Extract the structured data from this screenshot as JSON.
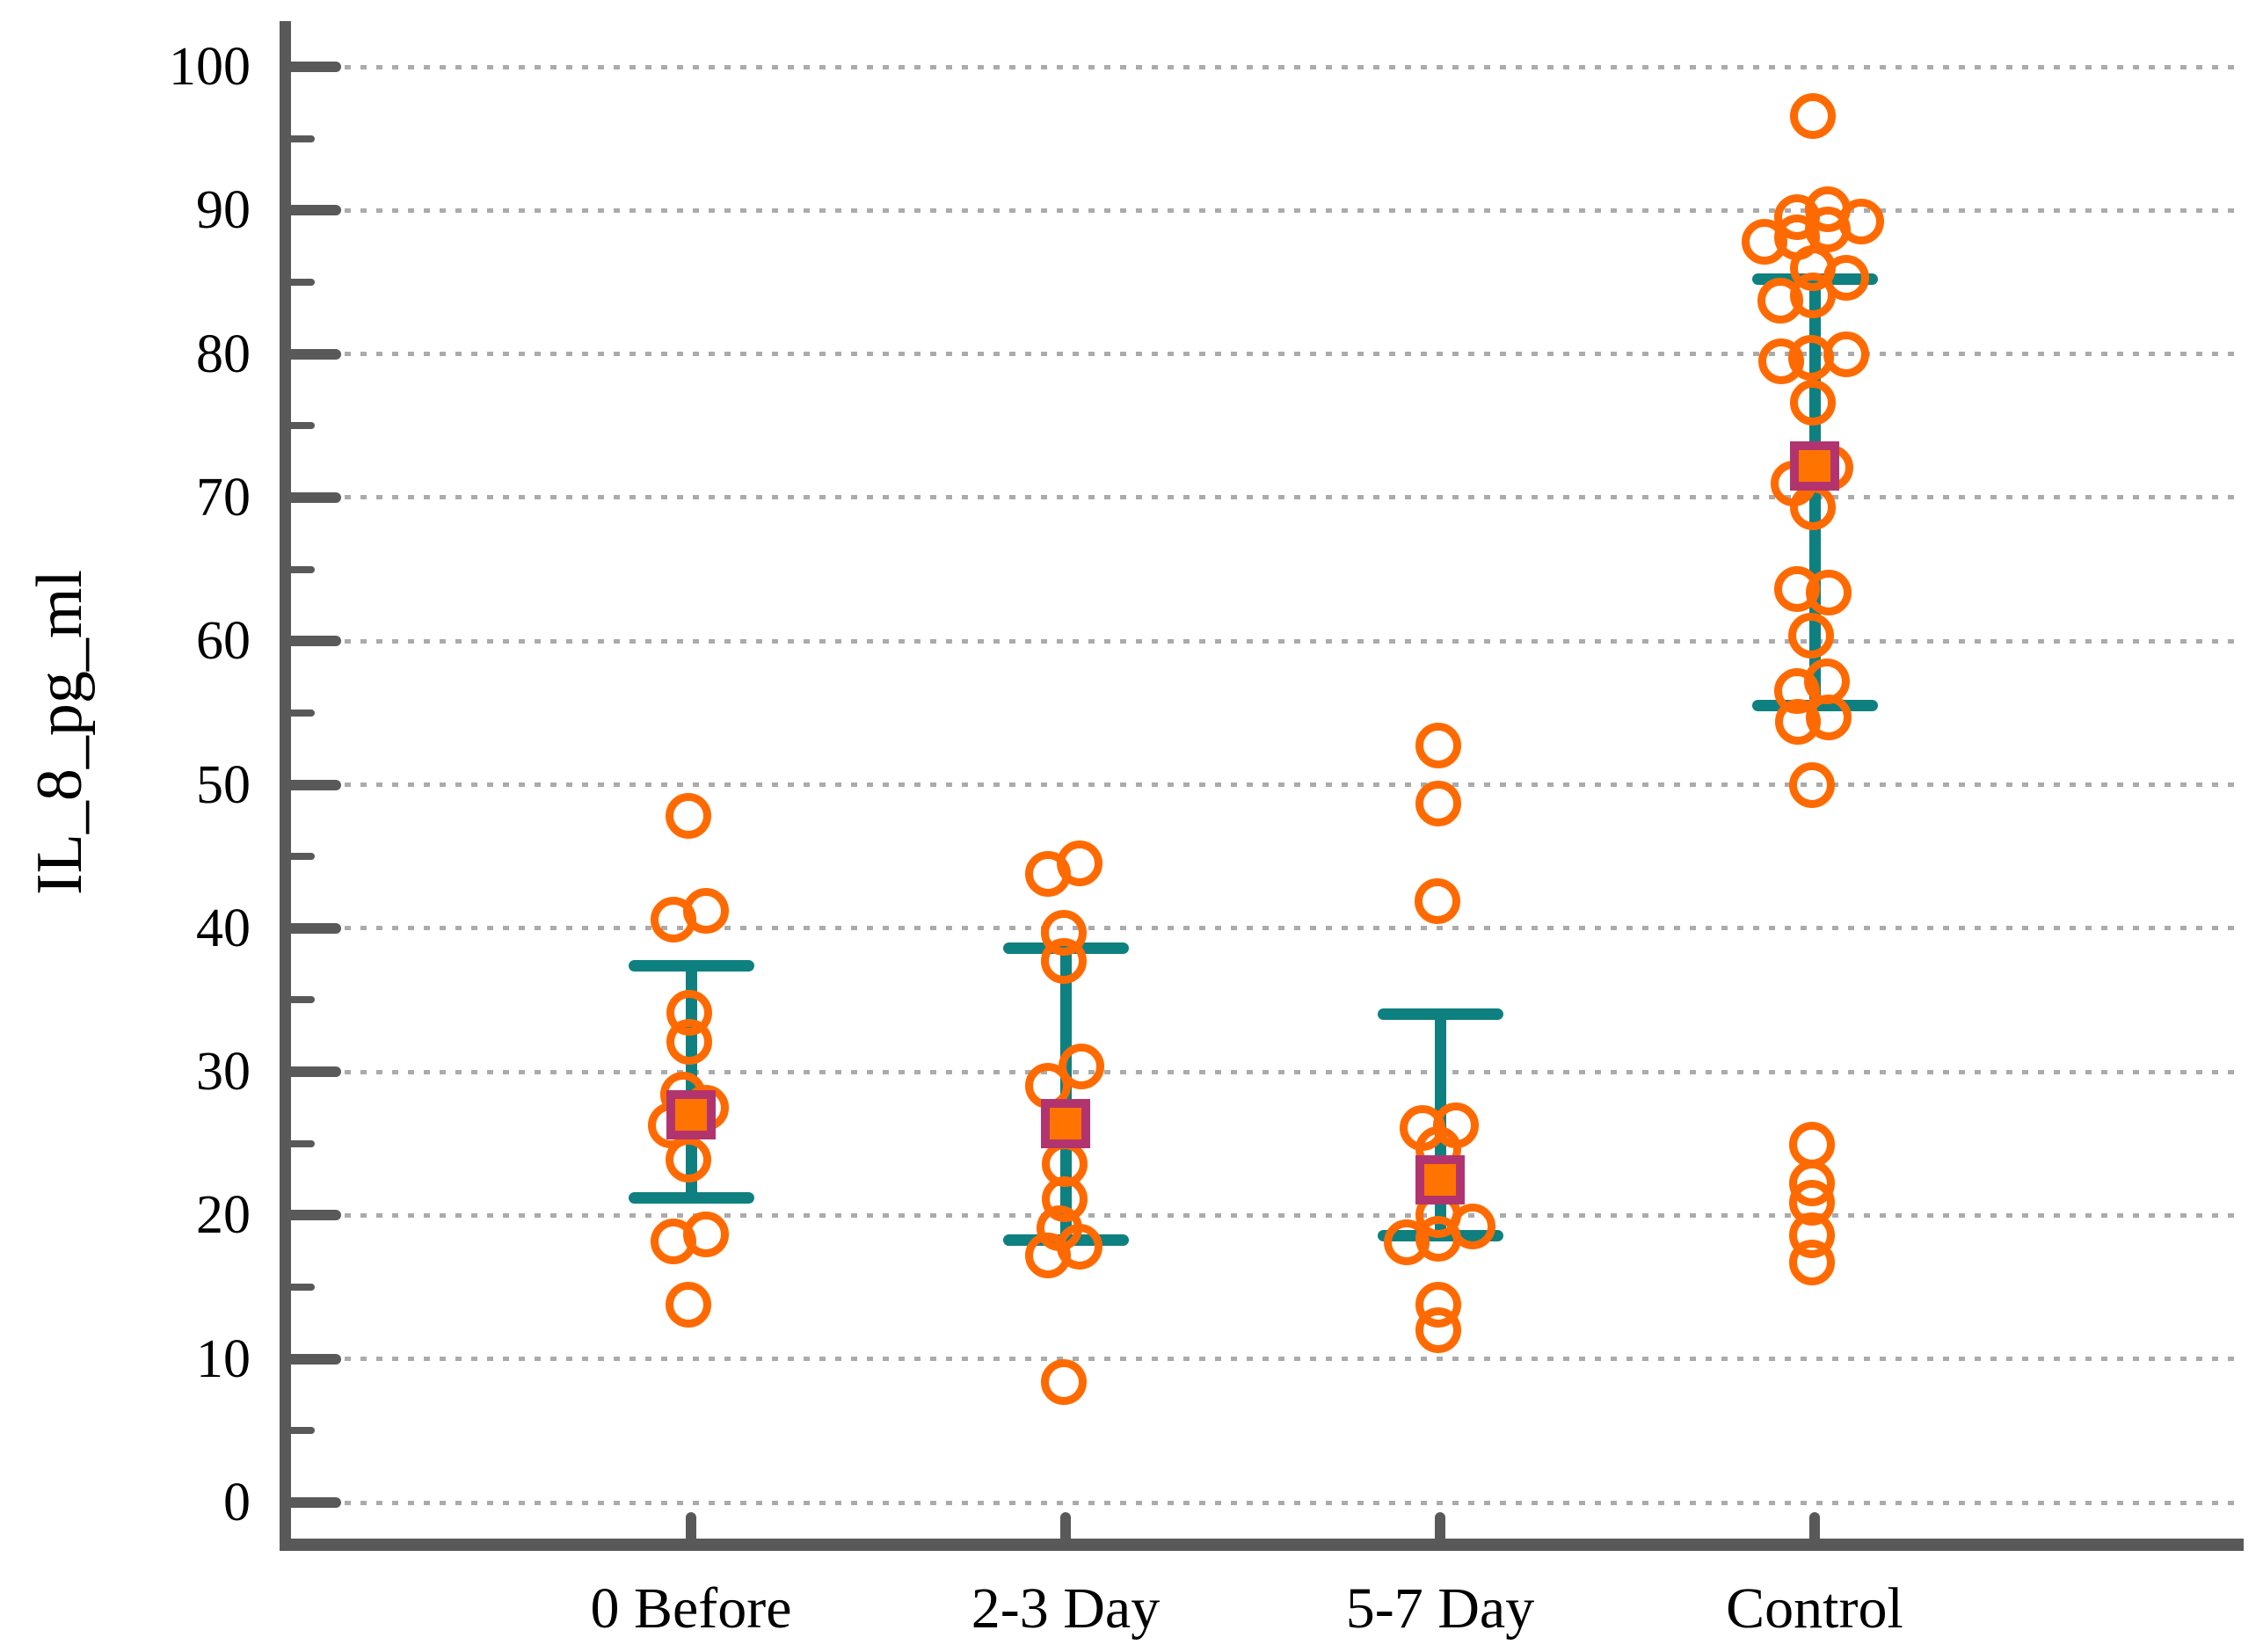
{
  "colors": {
    "point_stroke": "#FF6A00",
    "mean_fill": "#FF7300",
    "mean_border": "#B2346E",
    "whisker": "#0F8080",
    "axis": "#595959",
    "grid": "#ABABAB",
    "text": "#000000",
    "background": "#FFFFFF"
  },
  "chart_data": {
    "type": "scatter",
    "title": "",
    "xlabel": "",
    "ylabel": "IL_8_pg_ml",
    "ylim": [
      0,
      100
    ],
    "y_major_ticks": [
      0,
      10,
      20,
      30,
      40,
      50,
      60,
      70,
      80,
      90,
      100
    ],
    "y_minor_ticks": [
      5,
      15,
      25,
      35,
      45,
      55,
      65,
      75,
      85,
      95
    ],
    "grid": "horizontal-dotted",
    "legend_position": "none",
    "categories": [
      "0 Before",
      "2-3 Day",
      "5-7 Day",
      "Control"
    ],
    "point_format": "[value_pg_ml, x_jitter_px]",
    "groups": [
      {
        "label": "0 Before",
        "mean": 27.0,
        "whisker_low": 21.2,
        "whisker_high": 37.4,
        "points": [
          [
            47.8,
            -3
          ],
          [
            41.2,
            17
          ],
          [
            40.6,
            -20
          ],
          [
            34.1,
            -2
          ],
          [
            32.1,
            -2
          ],
          [
            28.4,
            -9
          ],
          [
            27.5,
            17
          ],
          [
            26.3,
            -23
          ],
          [
            23.9,
            -3
          ],
          [
            18.7,
            17
          ],
          [
            18.2,
            -20
          ],
          [
            13.8,
            -3
          ]
        ]
      },
      {
        "label": "2-3 Day",
        "mean": 26.4,
        "whisker_low": 18.3,
        "whisker_high": 38.6,
        "points": [
          [
            44.5,
            16
          ],
          [
            43.8,
            -20
          ],
          [
            39.7,
            -2
          ],
          [
            37.7,
            -2
          ],
          [
            30.4,
            18
          ],
          [
            29.0,
            -20
          ],
          [
            23.6,
            -1
          ],
          [
            21.1,
            -1
          ],
          [
            19.1,
            -7
          ],
          [
            17.8,
            16
          ],
          [
            17.2,
            -20
          ],
          [
            8.4,
            -2
          ]
        ]
      },
      {
        "label": "5-7 Day",
        "mean": 22.5,
        "whisker_low": 18.6,
        "whisker_high": 34.0,
        "points": [
          [
            52.7,
            -2
          ],
          [
            48.7,
            -2
          ],
          [
            41.9,
            -3
          ],
          [
            26.3,
            18
          ],
          [
            26.1,
            -20
          ],
          [
            24.6,
            -2
          ],
          [
            20.0,
            -2
          ],
          [
            19.2,
            37
          ],
          [
            18.4,
            -2
          ],
          [
            18.1,
            -38
          ],
          [
            13.8,
            -2
          ],
          [
            12.0,
            -2
          ]
        ]
      },
      {
        "label": "Control",
        "mean": 72.2,
        "whisker_low": 55.5,
        "whisker_high": 85.2,
        "points": [
          [
            96.6,
            -2
          ],
          [
            90.1,
            15
          ],
          [
            89.5,
            -20
          ],
          [
            89.2,
            53
          ],
          [
            88.7,
            15
          ],
          [
            88.1,
            -20
          ],
          [
            87.8,
            -57
          ],
          [
            86.0,
            -2
          ],
          [
            85.3,
            36
          ],
          [
            84.1,
            -2
          ],
          [
            83.7,
            -39
          ],
          [
            80.0,
            36
          ],
          [
            79.7,
            -4
          ],
          [
            79.5,
            -38
          ],
          [
            76.6,
            -2
          ],
          [
            72.1,
            18
          ],
          [
            71.0,
            -24
          ],
          [
            69.3,
            -2
          ],
          [
            63.6,
            -20
          ],
          [
            63.4,
            16
          ],
          [
            60.4,
            -4
          ],
          [
            57.2,
            14
          ],
          [
            56.5,
            -20
          ],
          [
            54.7,
            16
          ],
          [
            54.4,
            -19
          ],
          [
            50.0,
            -3
          ],
          [
            24.9,
            -3
          ],
          [
            22.2,
            -3
          ],
          [
            20.9,
            -3
          ],
          [
            18.6,
            -3
          ],
          [
            16.7,
            -3
          ]
        ]
      }
    ]
  }
}
